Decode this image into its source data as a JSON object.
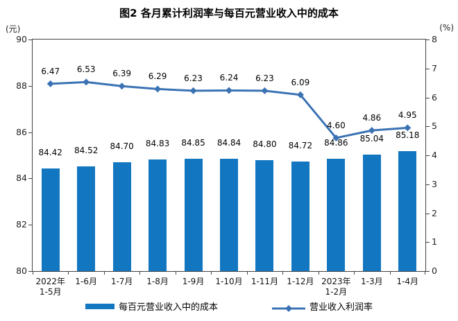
{
  "title": "图2 各月累计利润率与每百元营业收入中的成本",
  "left_axis": {
    "unit": "(元)",
    "min": 80,
    "max": 90,
    "ticks": [
      90,
      88,
      86,
      84,
      82,
      80
    ]
  },
  "right_axis": {
    "unit": "(%)",
    "min": 0,
    "max": 8,
    "ticks": [
      8,
      7,
      6,
      5,
      4,
      3,
      2,
      1,
      0
    ]
  },
  "legend": [
    {
      "label": "每百元营业收入中的成本",
      "type": "bar"
    },
    {
      "label": "营业收入利润率",
      "type": "line"
    }
  ],
  "colors": {
    "bar": "#1277c0",
    "line": "#3a72b4",
    "axis": "#404040",
    "text": "#000000"
  },
  "chart_data": {
    "type": "bar",
    "subtype": "bar-plus-line-dual-axis",
    "title": "图2 各月累计利润率与每百元营业收入中的成本",
    "categories": [
      [
        "2022年",
        "1-5月"
      ],
      [
        "1-6月"
      ],
      [
        "1-7月"
      ],
      [
        "1-8月"
      ],
      [
        "1-9月"
      ],
      [
        "1-10月"
      ],
      [
        "1-11月"
      ],
      [
        "1-12月"
      ],
      [
        "2023年",
        "1-2月"
      ],
      [
        "1-3月"
      ],
      [
        "1-4月"
      ]
    ],
    "series": [
      {
        "name": "每百元营业收入中的成本",
        "type": "bar",
        "axis": "left",
        "values": [
          84.42,
          84.52,
          84.7,
          84.83,
          84.85,
          84.84,
          84.8,
          84.72,
          84.86,
          85.04,
          85.18
        ]
      },
      {
        "name": "营业收入利润率",
        "type": "line",
        "axis": "right",
        "values": [
          6.47,
          6.53,
          6.39,
          6.29,
          6.23,
          6.24,
          6.23,
          6.09,
          4.6,
          4.86,
          4.95
        ]
      }
    ],
    "left_ylim": [
      80,
      90
    ],
    "right_ylim": [
      0,
      8
    ],
    "grid": false,
    "legend_position": "bottom",
    "data_labels": true
  }
}
